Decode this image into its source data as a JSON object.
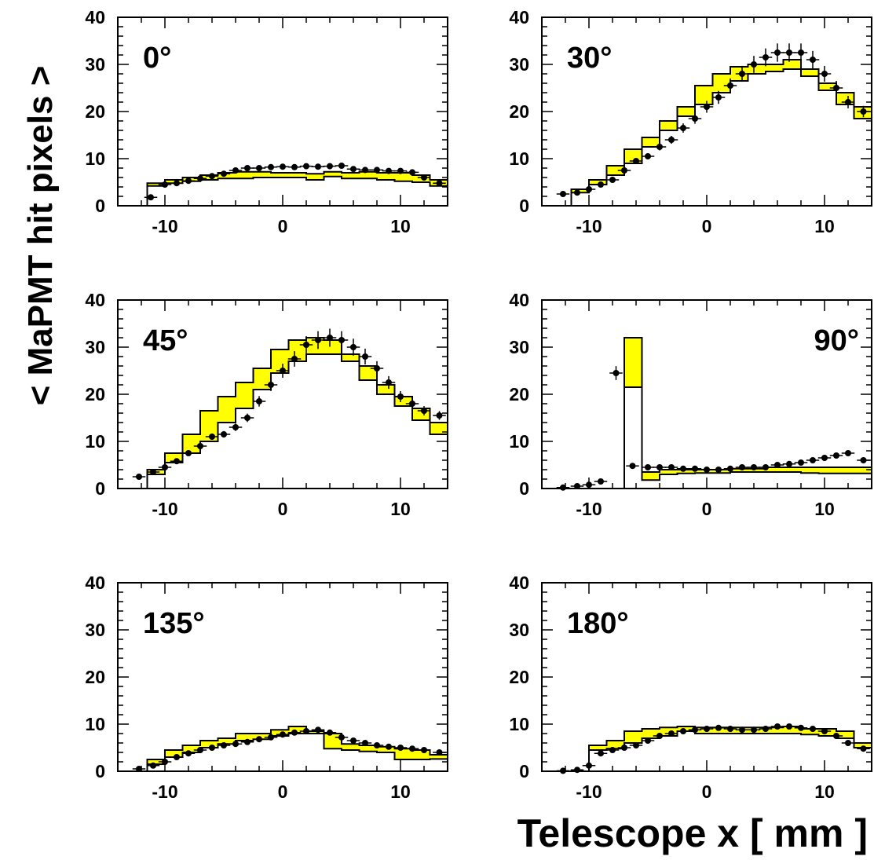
{
  "chart_data": {
    "type": "line",
    "xlabel": "Telescope x  [ mm ]",
    "ylabel": "< MaPMT hit pixels >",
    "xlim": [
      -14,
      14
    ],
    "ylim": [
      0,
      40
    ],
    "xticks": [
      "-10",
      "0",
      "10"
    ],
    "yticks": [
      "0",
      "10",
      "20",
      "30",
      "40"
    ],
    "colors": {
      "band": "#ffff00",
      "outline": "#000000",
      "points": "#000000"
    },
    "bin_edges": [
      -13,
      -11.5,
      -10,
      -8.5,
      -7,
      -5.5,
      -4,
      -2.5,
      -1,
      0.5,
      2,
      3.5,
      5,
      6.5,
      8,
      9.5,
      11,
      12.5,
      14
    ],
    "panels": [
      {
        "id": "0",
        "label": "0°",
        "label_pos": "top-left",
        "band_low": [
          0,
          4.2,
          4.8,
          5.2,
          5.5,
          5.8,
          5.8,
          6.0,
          6.0,
          6.0,
          5.5,
          6.2,
          5.8,
          5.8,
          5.5,
          5.2,
          5.0,
          4.2
        ],
        "band_high": [
          0,
          4.8,
          5.5,
          6.0,
          6.5,
          7.0,
          7.2,
          7.2,
          7.0,
          7.0,
          6.8,
          7.2,
          7.0,
          7.2,
          7.0,
          7.0,
          6.5,
          5.5
        ],
        "points_x": [
          -11.2,
          -10,
          -9,
          -8,
          -7,
          -6,
          -5,
          -4,
          -3,
          -2,
          -1,
          0,
          1,
          2,
          3,
          4,
          5,
          6,
          7,
          8,
          9,
          10,
          11,
          12,
          13.3
        ],
        "points_y": [
          1.8,
          4.5,
          4.8,
          5.3,
          5.8,
          6.3,
          6.8,
          7.5,
          8.0,
          8.0,
          8.2,
          8.3,
          8.2,
          8.4,
          8.3,
          8.4,
          8.5,
          7.8,
          7.6,
          7.6,
          7.4,
          7.4,
          7.1,
          6.0,
          4.8
        ]
      },
      {
        "id": "30",
        "label": "30°",
        "label_pos": "top-left",
        "band_low": [
          0,
          2.8,
          4.5,
          6.5,
          9.0,
          12.5,
          16.0,
          19.0,
          21.5,
          24.0,
          26.5,
          28.0,
          28.5,
          29.0,
          27.5,
          24.5,
          21.5,
          18.5
        ],
        "band_high": [
          0,
          3.5,
          5.5,
          8.5,
          12.0,
          14.5,
          18.0,
          21.0,
          25.5,
          28.0,
          29.5,
          30.0,
          30.0,
          31.0,
          29.0,
          26.0,
          24.0,
          21.0
        ],
        "points_x": [
          -12.2,
          -11,
          -10,
          -9,
          -8,
          -7,
          -6,
          -5,
          -4,
          -3,
          -2,
          -1,
          0,
          1,
          2,
          3,
          4,
          5,
          6,
          7,
          8,
          9,
          10,
          11,
          12,
          13.3
        ],
        "points_y": [
          2.5,
          2.8,
          3.5,
          4.5,
          5.5,
          7.5,
          9.5,
          10.5,
          12.5,
          14.0,
          16.5,
          18.5,
          21.0,
          23.0,
          25.5,
          28.0,
          30.0,
          31.5,
          32.5,
          32.5,
          32.5,
          31.0,
          28.0,
          25.0,
          22.0,
          20.0
        ]
      },
      {
        "id": "45",
        "label": "45°",
        "label_pos": "top-left",
        "band_low": [
          0,
          3.0,
          5.5,
          7.5,
          10.0,
          14.0,
          17.0,
          21.0,
          24.5,
          27.0,
          28.5,
          28.5,
          27.0,
          23.0,
          20.0,
          17.5,
          14.5,
          11.5
        ],
        "band_high": [
          0,
          4.0,
          7.5,
          11.5,
          16.5,
          19.5,
          22.5,
          25.5,
          29.5,
          31.5,
          32.0,
          31.5,
          28.5,
          26.0,
          22.0,
          19.5,
          17.0,
          14.0
        ],
        "points_x": [
          -12.2,
          -11,
          -10,
          -9,
          -8,
          -7,
          -6,
          -5,
          -4,
          -3,
          -2,
          -1,
          0,
          1,
          2,
          3,
          4,
          5,
          6,
          7,
          8,
          9,
          10,
          11,
          12,
          13.3
        ],
        "points_y": [
          2.5,
          3.5,
          4.5,
          5.8,
          7.5,
          9.0,
          11.0,
          11.5,
          13.0,
          15.0,
          18.5,
          22.0,
          25.0,
          27.5,
          30.5,
          31.5,
          32.0,
          31.5,
          30.0,
          28.0,
          25.5,
          22.5,
          19.5,
          18.0,
          16.5,
          15.5
        ]
      },
      {
        "id": "90",
        "label": "90°",
        "label_pos": "top-right",
        "band_low": [
          0,
          0,
          0,
          0,
          21.5,
          1.8,
          3.0,
          3.2,
          3.3,
          3.3,
          3.5,
          3.5,
          3.5,
          3.5,
          3.3,
          3.2,
          3.2,
          3.2
        ],
        "band_high": [
          0,
          0,
          0,
          0,
          32.0,
          3.5,
          4.0,
          4.0,
          4.0,
          4.0,
          4.2,
          4.2,
          4.5,
          4.5,
          4.5,
          4.5,
          4.5,
          4.5
        ],
        "points_x": [
          -12.2,
          -11,
          -10,
          -9,
          -7.7,
          -6.3,
          -5,
          -4,
          -3,
          -2,
          -1,
          0,
          1,
          2,
          3,
          4,
          5,
          6,
          7,
          8,
          9,
          10,
          11,
          12,
          13.3
        ],
        "points_y": [
          0.2,
          0.5,
          0.8,
          1.5,
          24.5,
          4.8,
          4.5,
          4.5,
          4.5,
          4.2,
          4.2,
          4.0,
          4.0,
          4.2,
          4.5,
          4.5,
          4.5,
          5.0,
          5.2,
          5.5,
          6.0,
          6.5,
          7.0,
          7.5,
          6.0
        ]
      },
      {
        "id": "135",
        "label": "135°",
        "label_pos": "top-left",
        "band_low": [
          0,
          1.5,
          3.0,
          4.0,
          5.0,
          5.8,
          6.5,
          6.8,
          7.5,
          8.0,
          8.0,
          4.8,
          4.5,
          4.2,
          4.0,
          2.5,
          2.5,
          2.6
        ],
        "band_high": [
          0,
          2.5,
          4.5,
          5.5,
          6.5,
          7.0,
          8.0,
          8.0,
          8.8,
          9.5,
          8.5,
          8.0,
          5.8,
          5.5,
          5.2,
          4.8,
          4.5,
          3.5
        ],
        "points_x": [
          -12.2,
          -11,
          -10,
          -9,
          -8,
          -7,
          -6,
          -5,
          -4,
          -3,
          -2,
          -1,
          0,
          1,
          2,
          3,
          4,
          5,
          6,
          7,
          8,
          9,
          10,
          11,
          12,
          13.3
        ],
        "points_y": [
          0.5,
          1.2,
          2.0,
          3.0,
          3.8,
          4.5,
          5.0,
          5.5,
          5.8,
          6.2,
          6.8,
          7.2,
          7.8,
          8.2,
          8.5,
          8.8,
          8.2,
          7.2,
          6.5,
          6.0,
          5.5,
          5.2,
          5.0,
          4.8,
          4.5,
          4.0
        ]
      },
      {
        "id": "180",
        "label": "180°",
        "label_pos": "top-left",
        "band_low": [
          0,
          0,
          4.5,
          4.8,
          6.0,
          7.0,
          7.5,
          8.5,
          8.0,
          8.0,
          8.0,
          8.0,
          8.0,
          8.0,
          7.8,
          7.5,
          7.0,
          5.0
        ],
        "band_high": [
          0,
          0,
          5.5,
          6.5,
          8.5,
          9.0,
          9.3,
          9.5,
          9.3,
          9.3,
          9.3,
          9.3,
          9.3,
          9.5,
          9.0,
          9.0,
          8.5,
          6.0
        ],
        "points_x": [
          -12.2,
          -11,
          -10,
          -9,
          -8,
          -7,
          -6,
          -5,
          -4,
          -3,
          -2,
          -1,
          0,
          1,
          2,
          3,
          4,
          5,
          6,
          7,
          8,
          9,
          10,
          11,
          12,
          13.3
        ],
        "points_y": [
          0.1,
          0.3,
          1.2,
          3.8,
          4.5,
          5.0,
          5.5,
          6.5,
          7.5,
          8.0,
          8.5,
          8.8,
          9.0,
          9.2,
          9.0,
          8.8,
          8.8,
          9.0,
          9.5,
          9.5,
          9.2,
          9.0,
          8.5,
          7.5,
          6.0,
          4.8
        ]
      }
    ]
  }
}
